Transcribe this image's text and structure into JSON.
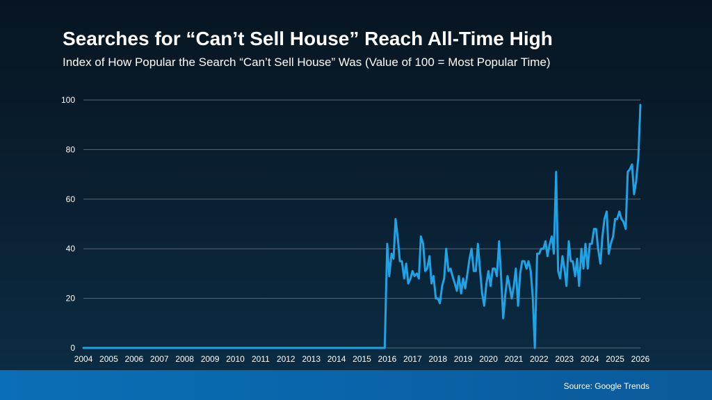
{
  "title": "Searches for “Can’t Sell House” Reach All-Time High",
  "subtitle": "Index of How Popular the Search “Can’t Sell House” Was (Value of 100 = Most Popular Time)",
  "source": "Source: Google Trends",
  "colors": {
    "line": "#1ea3e6",
    "grid": "#5a6b78",
    "text": "#ffffff"
  },
  "chart_data": {
    "type": "line",
    "title": "Searches for “Can’t Sell House” Reach All-Time High",
    "xlabel": "",
    "ylabel": "",
    "ylim": [
      0,
      100
    ],
    "xlim": [
      2004,
      2026
    ],
    "yticks": [
      0,
      20,
      40,
      60,
      80,
      100
    ],
    "xticks": [
      "2004",
      "2005",
      "2006",
      "2007",
      "2008",
      "2009",
      "2010",
      "2011",
      "2012",
      "2013",
      "2014",
      "2015",
      "2016",
      "2017",
      "2018",
      "2019",
      "2020",
      "2021",
      "2022",
      "2023",
      "2024",
      "2025",
      "2026"
    ],
    "grid": true,
    "series": [
      {
        "values": [
          [
            2004,
            0
          ],
          [
            2015.9,
            0
          ],
          [
            2016.0,
            42
          ],
          [
            2016.08,
            29
          ],
          [
            2016.17,
            38
          ],
          [
            2016.25,
            36
          ],
          [
            2016.33,
            52
          ],
          [
            2016.42,
            44
          ],
          [
            2016.5,
            35
          ],
          [
            2016.58,
            35
          ],
          [
            2016.67,
            28
          ],
          [
            2016.75,
            34
          ],
          [
            2016.83,
            26
          ],
          [
            2016.92,
            28
          ],
          [
            2017.0,
            31
          ],
          [
            2017.08,
            29
          ],
          [
            2017.17,
            30
          ],
          [
            2017.25,
            28
          ],
          [
            2017.33,
            45
          ],
          [
            2017.42,
            42
          ],
          [
            2017.5,
            31
          ],
          [
            2017.58,
            32
          ],
          [
            2017.67,
            37
          ],
          [
            2017.75,
            26
          ],
          [
            2017.83,
            29
          ],
          [
            2017.92,
            20
          ],
          [
            2018.0,
            20
          ],
          [
            2018.08,
            18
          ],
          [
            2018.17,
            25
          ],
          [
            2018.25,
            28
          ],
          [
            2018.33,
            40
          ],
          [
            2018.42,
            31
          ],
          [
            2018.5,
            32
          ],
          [
            2018.58,
            29
          ],
          [
            2018.67,
            26
          ],
          [
            2018.75,
            23
          ],
          [
            2018.83,
            29
          ],
          [
            2018.92,
            22
          ],
          [
            2019.0,
            28
          ],
          [
            2019.08,
            24
          ],
          [
            2019.17,
            30
          ],
          [
            2019.25,
            36
          ],
          [
            2019.33,
            40
          ],
          [
            2019.42,
            31
          ],
          [
            2019.5,
            31
          ],
          [
            2019.58,
            42
          ],
          [
            2019.67,
            31
          ],
          [
            2019.75,
            22
          ],
          [
            2019.83,
            17
          ],
          [
            2019.92,
            26
          ],
          [
            2020.0,
            31
          ],
          [
            2020.08,
            25
          ],
          [
            2020.17,
            32
          ],
          [
            2020.25,
            32
          ],
          [
            2020.33,
            29
          ],
          [
            2020.42,
            43
          ],
          [
            2020.5,
            28
          ],
          [
            2020.58,
            12
          ],
          [
            2020.67,
            22
          ],
          [
            2020.75,
            29
          ],
          [
            2020.83,
            25
          ],
          [
            2020.92,
            20
          ],
          [
            2021.0,
            25
          ],
          [
            2021.08,
            32
          ],
          [
            2021.17,
            17
          ],
          [
            2021.25,
            30
          ],
          [
            2021.33,
            35
          ],
          [
            2021.42,
            35
          ],
          [
            2021.5,
            32
          ],
          [
            2021.58,
            35
          ],
          [
            2021.67,
            31
          ],
          [
            2021.75,
            20
          ],
          [
            2021.83,
            0
          ],
          [
            2021.92,
            38
          ],
          [
            2022.0,
            38
          ],
          [
            2022.08,
            40
          ],
          [
            2022.17,
            40
          ],
          [
            2022.25,
            43
          ],
          [
            2022.33,
            37
          ],
          [
            2022.42,
            42
          ],
          [
            2022.5,
            45
          ],
          [
            2022.58,
            38
          ],
          [
            2022.67,
            71
          ],
          [
            2022.75,
            31
          ],
          [
            2022.83,
            28
          ],
          [
            2022.92,
            37
          ],
          [
            2023.0,
            32
          ],
          [
            2023.08,
            25
          ],
          [
            2023.17,
            43
          ],
          [
            2023.25,
            35
          ],
          [
            2023.33,
            35
          ],
          [
            2023.42,
            29
          ],
          [
            2023.5,
            36
          ],
          [
            2023.58,
            25
          ],
          [
            2023.67,
            40
          ],
          [
            2023.75,
            32
          ],
          [
            2023.83,
            42
          ],
          [
            2023.92,
            32
          ],
          [
            2024.0,
            42
          ],
          [
            2024.08,
            42
          ],
          [
            2024.17,
            48
          ],
          [
            2024.25,
            48
          ],
          [
            2024.33,
            40
          ],
          [
            2024.42,
            34
          ],
          [
            2024.5,
            45
          ],
          [
            2024.58,
            52
          ],
          [
            2024.67,
            55
          ],
          [
            2024.75,
            38
          ],
          [
            2024.83,
            42
          ],
          [
            2024.92,
            45
          ],
          [
            2025.0,
            52
          ],
          [
            2025.08,
            52
          ],
          [
            2025.17,
            55
          ],
          [
            2025.25,
            52
          ],
          [
            2025.33,
            51
          ],
          [
            2025.42,
            48
          ],
          [
            2025.5,
            71
          ],
          [
            2025.58,
            72
          ],
          [
            2025.67,
            74
          ],
          [
            2025.75,
            62
          ],
          [
            2025.83,
            67
          ],
          [
            2025.92,
            77
          ],
          [
            2026.0,
            98
          ]
        ]
      }
    ]
  }
}
